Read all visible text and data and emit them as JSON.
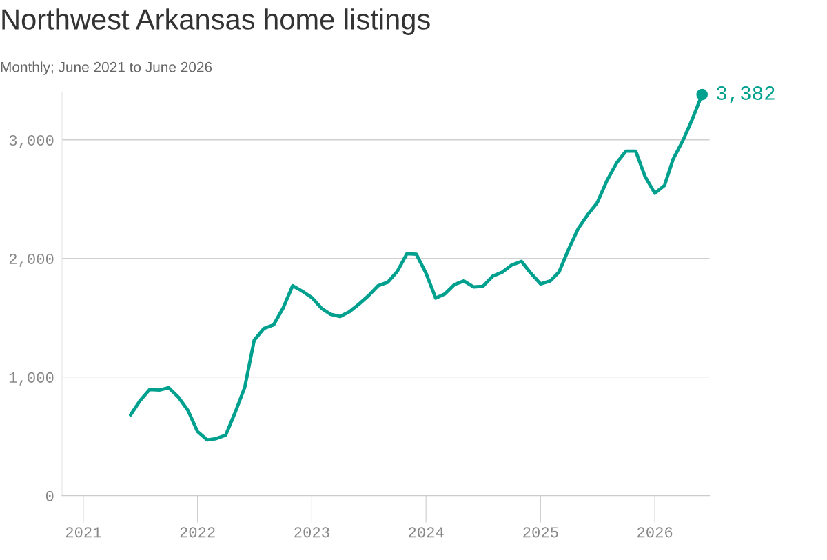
{
  "chart_data": {
    "type": "line",
    "title": "Northwest Arkansas home listings",
    "subtitle": "Monthly; June 2021 to June 2026",
    "x": [
      "2021-06",
      "2021-07",
      "2021-08",
      "2021-09",
      "2021-10",
      "2021-11",
      "2021-12",
      "2022-01",
      "2022-02",
      "2022-03",
      "2022-04",
      "2022-05",
      "2022-06",
      "2022-07",
      "2022-08",
      "2022-09",
      "2022-10",
      "2022-11",
      "2022-12",
      "2023-01",
      "2023-02",
      "2023-03",
      "2023-04",
      "2023-05",
      "2023-06",
      "2023-07",
      "2023-08",
      "2023-09",
      "2023-10",
      "2023-11",
      "2023-12",
      "2024-01",
      "2024-02",
      "2024-03",
      "2024-04",
      "2024-05",
      "2024-06",
      "2024-07",
      "2024-08",
      "2024-09",
      "2024-10",
      "2024-11",
      "2024-12",
      "2025-01",
      "2025-02",
      "2025-03",
      "2025-04",
      "2025-05",
      "2025-06",
      "2025-07",
      "2025-08",
      "2025-09",
      "2025-10",
      "2025-11",
      "2025-12",
      "2026-01",
      "2026-02",
      "2026-03",
      "2026-04",
      "2026-05",
      "2026-06"
    ],
    "series": [
      {
        "color": "#00a08f",
        "values": [
          680,
          800,
          895,
          890,
          910,
          830,
          720,
          540,
          470,
          480,
          510,
          700,
          915,
          1310,
          1410,
          1440,
          1580,
          1770,
          1725,
          1670,
          1580,
          1530,
          1510,
          1550,
          1615,
          1685,
          1770,
          1800,
          1890,
          2040,
          2035,
          1875,
          1665,
          1700,
          1780,
          1810,
          1760,
          1765,
          1850,
          1885,
          1945,
          1975,
          1875,
          1785,
          1810,
          1885,
          2080,
          2250,
          2370,
          2470,
          2655,
          2805,
          2905,
          2905,
          2690,
          2550,
          2615,
          2840,
          2995,
          3175,
          3382
        ]
      }
    ],
    "xlim": [
      "2020-10-25",
      "2026-06-25"
    ],
    "xticks": [
      {
        "value": "2021",
        "label": "2021"
      },
      {
        "value": "2022",
        "label": "2022"
      },
      {
        "value": "2023",
        "label": "2023"
      },
      {
        "value": "2024",
        "label": "2024"
      },
      {
        "value": "2025",
        "label": "2025"
      },
      {
        "value": "2026",
        "label": "2026"
      }
    ],
    "ylim": [
      0,
      3400
    ],
    "yticks": [
      0,
      {
        "value": 1000,
        "label": "1,000"
      },
      {
        "value": 2000,
        "label": "2,000"
      },
      {
        "value": 3000,
        "label": "3,000"
      }
    ],
    "grid": "y",
    "line_style": "solid",
    "annotations": [
      {
        "text": "3,382",
        "x": "2026-06",
        "y": 3382
      }
    ]
  }
}
